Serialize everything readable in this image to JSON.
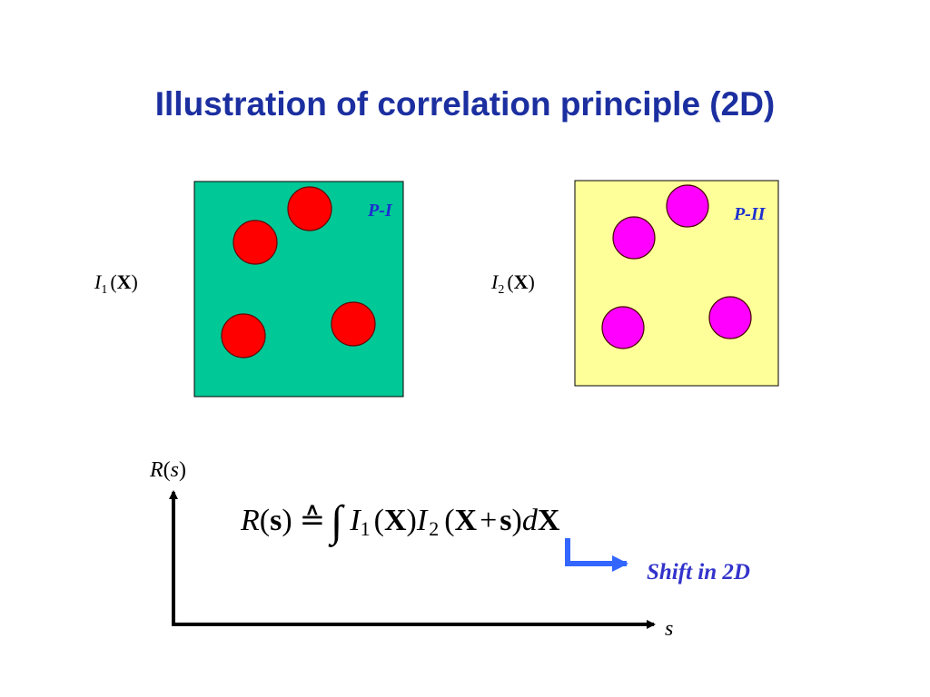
{
  "title": "Illustration of correlation principle (2D)",
  "panel_1": {
    "label": "P-I",
    "function": [
      "I",
      "1",
      "(",
      "X",
      ")"
    ]
  },
  "panel_2": {
    "label": "P-II",
    "function": [
      "I",
      "2",
      "(",
      "X",
      ")"
    ]
  },
  "axes": {
    "y_label": [
      "R",
      "(",
      "s",
      ")"
    ],
    "x_label": "s"
  },
  "formula": [
    "R",
    "(",
    "s",
    ")",
    "≙",
    "∫",
    "I",
    "1",
    "(",
    "X",
    ")",
    "I",
    "2",
    "(",
    "X",
    "+",
    "s",
    ")",
    "d",
    "X"
  ],
  "annotation": "Shift in 2D"
}
